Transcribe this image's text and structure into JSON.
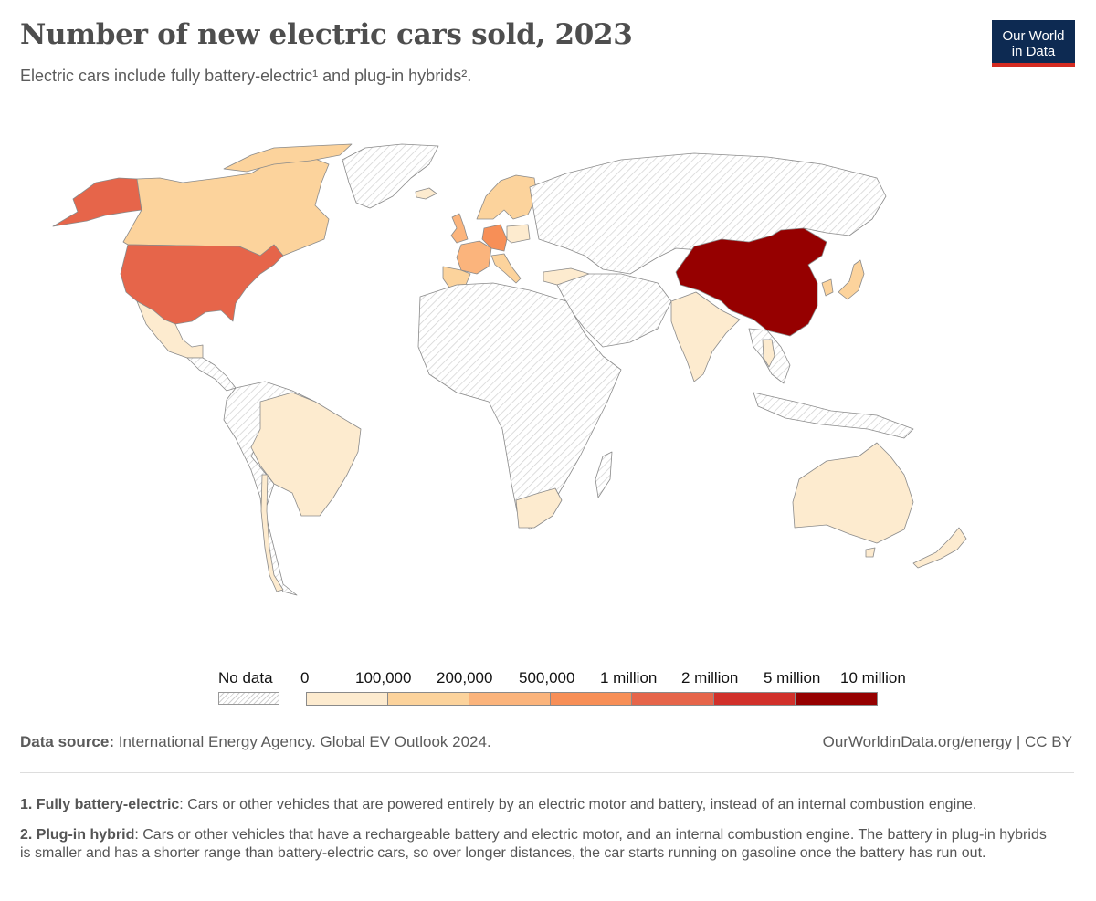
{
  "header": {
    "title": "Number of new electric cars sold, 2023",
    "subtitle": "Electric cars include fully battery-electric¹ and plug-in hybrids².",
    "logo_line1": "Our World",
    "logo_line2": "in Data"
  },
  "map": {
    "metric": "Number of new electric cars sold",
    "year": "2023",
    "countries": [
      {
        "name": "China",
        "bin": "5 million – 10 million"
      },
      {
        "name": "United States",
        "bin": "1 million – 2 million"
      },
      {
        "name": "Alaska (United States)",
        "bin": "1 million – 2 million"
      },
      {
        "name": "Germany",
        "bin": "500,000 – 1 million"
      },
      {
        "name": "United Kingdom",
        "bin": "200,000 – 500,000"
      },
      {
        "name": "France",
        "bin": "200,000 – 500,000"
      },
      {
        "name": "Canada",
        "bin": "100,000 – 200,000"
      },
      {
        "name": "Norway",
        "bin": "100,000 – 200,000"
      },
      {
        "name": "Sweden",
        "bin": "100,000 – 200,000"
      },
      {
        "name": "Italy",
        "bin": "100,000 – 200,000"
      },
      {
        "name": "Spain",
        "bin": "100,000 – 200,000"
      },
      {
        "name": "Japan",
        "bin": "100,000 – 200,000"
      },
      {
        "name": "South Korea",
        "bin": "100,000 – 200,000"
      },
      {
        "name": "Iceland",
        "bin": "0 – 100,000"
      },
      {
        "name": "India",
        "bin": "0 – 100,000"
      },
      {
        "name": "Australia",
        "bin": "0 – 100,000"
      },
      {
        "name": "New Zealand",
        "bin": "0 – 100,000"
      },
      {
        "name": "Brazil",
        "bin": "0 – 100,000"
      },
      {
        "name": "Chile",
        "bin": "0 – 100,000"
      },
      {
        "name": "Mexico",
        "bin": "0 – 100,000"
      },
      {
        "name": "South Africa",
        "bin": "0 – 100,000"
      },
      {
        "name": "Turkey",
        "bin": "0 – 100,000"
      },
      {
        "name": "Poland",
        "bin": "0 – 100,000"
      },
      {
        "name": "Thailand",
        "bin": "0 – 100,000"
      },
      {
        "name": "Russia",
        "bin": "No data"
      },
      {
        "name": "Africa (most countries)",
        "bin": "No data"
      },
      {
        "name": "Greenland",
        "bin": "No data"
      }
    ]
  },
  "legend": {
    "no_data_label": "No data",
    "tick_labels": [
      "0",
      "100,000",
      "200,000",
      "500,000",
      "1 million",
      "2 million",
      "5 million",
      "10 million"
    ],
    "bin_colors": [
      "#fdebcf",
      "#fcd39c",
      "#fbb47c",
      "#f78f57",
      "#e6654a",
      "#d1302a",
      "#960000"
    ]
  },
  "colors": {
    "no_data_hatch": "#d0d0d0",
    "border": "#8a8a8a",
    "logo_bg": "#0d2a52",
    "logo_bar": "#d42b21"
  },
  "footer": {
    "source_label": "Data source:",
    "source_text": "International Energy Agency. Global EV Outlook 2024.",
    "credit": "OurWorldinData.org/energy | CC BY",
    "note1_label": "1. Fully battery-electric",
    "note1_text": ": Cars or other vehicles that are powered entirely by an electric motor and battery, instead of an internal combustion engine.",
    "note2_label": "2. Plug-in hybrid",
    "note2_text": ": Cars or other vehicles that have a rechargeable battery and electric motor, and an internal combustion engine. The battery in plug-in hybrids is smaller and has a shorter range than battery-electric cars, so over longer distances, the car starts running on gasoline once the battery has run out."
  }
}
